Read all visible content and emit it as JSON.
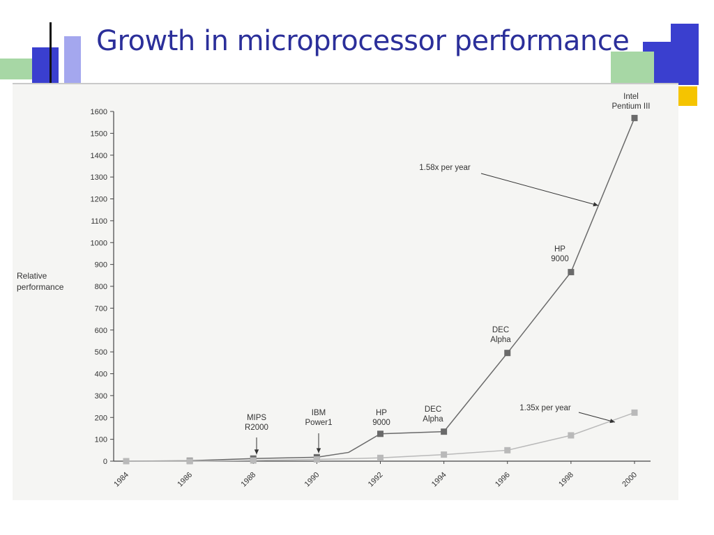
{
  "slide": {
    "title": "Growth in microprocessor performance"
  },
  "theme": {
    "title_color": "#2b2f9a",
    "deco_blue": "#3a3fcf",
    "deco_green": "#a7d7a5",
    "deco_yellow": "#f5c400"
  },
  "chart_data": {
    "type": "line",
    "ylabel": "Relative\nperformance",
    "xlabel": "",
    "ylim": [
      0,
      1600
    ],
    "yticks": [
      0,
      100,
      200,
      300,
      400,
      500,
      600,
      700,
      800,
      900,
      1000,
      1100,
      1200,
      1300,
      1400,
      1500,
      1600
    ],
    "xlim": [
      1984,
      2000
    ],
    "xticks": [
      "1984",
      "1986",
      "1988",
      "1990",
      "1992",
      "1994",
      "1996",
      "1998",
      "2000"
    ],
    "grid": false,
    "series": [
      {
        "color": "#6a6a6a",
        "points": [
          {
            "x": 1984,
            "y": 0
          },
          {
            "x": 1986,
            "y": 2
          },
          {
            "x": 1988,
            "y": 12
          },
          {
            "x": 1990,
            "y": 18
          },
          {
            "x": 1991,
            "y": 40
          },
          {
            "x": 1992,
            "y": 125
          },
          {
            "x": 1994,
            "y": 135
          },
          {
            "x": 1996,
            "y": 495
          },
          {
            "x": 1998,
            "y": 865
          },
          {
            "x": 2000,
            "y": 1570
          }
        ]
      },
      {
        "color": "#b9b9b9",
        "points": [
          {
            "x": 1984,
            "y": 0
          },
          {
            "x": 1986,
            "y": 0
          },
          {
            "x": 1988,
            "y": 3
          },
          {
            "x": 1990,
            "y": 8
          },
          {
            "x": 1992,
            "y": 15
          },
          {
            "x": 1994,
            "y": 30
          },
          {
            "x": 1996,
            "y": 50
          },
          {
            "x": 1998,
            "y": 118
          },
          {
            "x": 2000,
            "y": 222
          }
        ]
      }
    ],
    "annotations": [
      {
        "lines": [
          "MIPS",
          "R2000"
        ],
        "x": 1988,
        "y": 12
      },
      {
        "lines": [
          "IBM",
          "Power1"
        ],
        "x": 1990,
        "y": 18
      },
      {
        "lines": [
          "HP",
          "9000"
        ],
        "x": 1992,
        "y": 125
      },
      {
        "lines": [
          "DEC",
          "Alpha"
        ],
        "x": 1994,
        "y": 135
      },
      {
        "lines": [
          "DEC",
          "Alpha"
        ],
        "x": 1996,
        "y": 495
      },
      {
        "lines": [
          "HP",
          "9000"
        ],
        "x": 1998,
        "y": 865
      },
      {
        "lines": [
          "Intel",
          "Pentium III"
        ],
        "x": 2000,
        "y": 1570
      },
      {
        "lines": [
          "1.58x per year"
        ],
        "x": 1998.8,
        "y": 1180
      },
      {
        "lines": [
          "1.35x per year"
        ],
        "x": 1999.5,
        "y": 185
      }
    ]
  }
}
